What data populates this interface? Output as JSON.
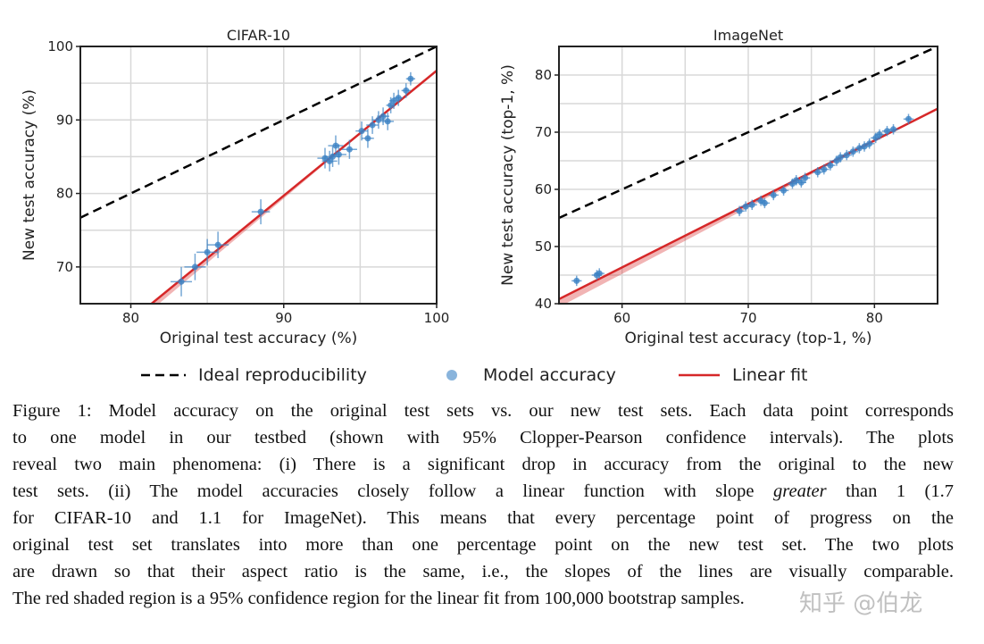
{
  "chart_data": [
    {
      "type": "scatter",
      "title": "CIFAR-10",
      "xlabel": "Original test accuracy (%)",
      "ylabel": "New test accuracy (%)",
      "xlim": [
        76.7,
        100
      ],
      "ylim": [
        65,
        100
      ],
      "xticks": [
        80,
        90,
        100
      ],
      "yticks": [
        70,
        80,
        90,
        100
      ],
      "grid": true,
      "ideal_line": {
        "slope": 1,
        "intercept": 0
      },
      "linear_fit": {
        "slope": 1.7,
        "intercept": -73.3
      },
      "points": [
        {
          "x": 83.3,
          "y": 68.0,
          "xerr": 0.7,
          "yerr": 2.0
        },
        {
          "x": 84.2,
          "y": 70.0,
          "xerr": 0.7,
          "yerr": 1.8
        },
        {
          "x": 85.0,
          "y": 72.0,
          "xerr": 0.7,
          "yerr": 1.8
        },
        {
          "x": 85.7,
          "y": 73.0,
          "xerr": 0.7,
          "yerr": 1.8
        },
        {
          "x": 88.5,
          "y": 77.5,
          "xerr": 0.6,
          "yerr": 1.7
        },
        {
          "x": 92.7,
          "y": 84.8,
          "xerr": 0.5,
          "yerr": 1.4
        },
        {
          "x": 93.0,
          "y": 84.4,
          "xerr": 0.5,
          "yerr": 1.4
        },
        {
          "x": 93.2,
          "y": 85.0,
          "xerr": 0.5,
          "yerr": 1.4
        },
        {
          "x": 93.4,
          "y": 86.5,
          "xerr": 0.5,
          "yerr": 1.4
        },
        {
          "x": 93.6,
          "y": 85.3,
          "xerr": 0.5,
          "yerr": 1.4
        },
        {
          "x": 94.3,
          "y": 86.0,
          "xerr": 0.5,
          "yerr": 1.3
        },
        {
          "x": 95.1,
          "y": 88.5,
          "xerr": 0.4,
          "yerr": 1.3
        },
        {
          "x": 95.5,
          "y": 87.5,
          "xerr": 0.4,
          "yerr": 1.3
        },
        {
          "x": 95.8,
          "y": 89.3,
          "xerr": 0.4,
          "yerr": 1.2
        },
        {
          "x": 96.2,
          "y": 90.0,
          "xerr": 0.4,
          "yerr": 1.2
        },
        {
          "x": 96.5,
          "y": 90.5,
          "xerr": 0.4,
          "yerr": 1.2
        },
        {
          "x": 96.8,
          "y": 89.8,
          "xerr": 0.4,
          "yerr": 1.2
        },
        {
          "x": 97.0,
          "y": 92.0,
          "xerr": 0.3,
          "yerr": 1.1
        },
        {
          "x": 97.2,
          "y": 92.6,
          "xerr": 0.3,
          "yerr": 1.1
        },
        {
          "x": 97.5,
          "y": 93.0,
          "xerr": 0.3,
          "yerr": 1.1
        },
        {
          "x": 98.0,
          "y": 94.0,
          "xerr": 0.3,
          "yerr": 1.0
        },
        {
          "x": 98.3,
          "y": 95.6,
          "xerr": 0.3,
          "yerr": 0.9
        }
      ]
    },
    {
      "type": "scatter",
      "title": "ImageNet",
      "xlabel": "Original test accuracy (top-1, %)",
      "ylabel": "New test accuracy (top-1, %)",
      "xlim": [
        55,
        85
      ],
      "ylim": [
        40,
        85
      ],
      "xticks": [
        60,
        70,
        80
      ],
      "yticks": [
        40,
        50,
        60,
        70,
        80
      ],
      "grid": true,
      "ideal_line": {
        "slope": 1,
        "intercept": 0
      },
      "linear_fit": {
        "slope": 1.11,
        "intercept": -20.25
      },
      "points": [
        {
          "x": 56.4,
          "y": 44.0,
          "xerr": 0.4,
          "yerr": 0.9
        },
        {
          "x": 58.0,
          "y": 45.0,
          "xerr": 0.4,
          "yerr": 0.9
        },
        {
          "x": 58.2,
          "y": 45.3,
          "xerr": 0.4,
          "yerr": 0.9
        },
        {
          "x": 69.3,
          "y": 56.2,
          "xerr": 0.4,
          "yerr": 0.9
        },
        {
          "x": 69.8,
          "y": 57.0,
          "xerr": 0.4,
          "yerr": 0.9
        },
        {
          "x": 70.3,
          "y": 57.3,
          "xerr": 0.4,
          "yerr": 0.9
        },
        {
          "x": 71.0,
          "y": 58.0,
          "xerr": 0.4,
          "yerr": 0.9
        },
        {
          "x": 71.3,
          "y": 57.6,
          "xerr": 0.4,
          "yerr": 0.9
        },
        {
          "x": 72.0,
          "y": 59.0,
          "xerr": 0.4,
          "yerr": 0.9
        },
        {
          "x": 72.8,
          "y": 59.8,
          "xerr": 0.4,
          "yerr": 0.9
        },
        {
          "x": 73.5,
          "y": 61.0,
          "xerr": 0.4,
          "yerr": 0.9
        },
        {
          "x": 73.8,
          "y": 61.6,
          "xerr": 0.4,
          "yerr": 0.9
        },
        {
          "x": 74.2,
          "y": 61.2,
          "xerr": 0.4,
          "yerr": 0.9
        },
        {
          "x": 74.5,
          "y": 62.0,
          "xerr": 0.4,
          "yerr": 0.9
        },
        {
          "x": 75.5,
          "y": 63.0,
          "xerr": 0.4,
          "yerr": 0.9
        },
        {
          "x": 76.0,
          "y": 63.5,
          "xerr": 0.4,
          "yerr": 0.9
        },
        {
          "x": 76.5,
          "y": 64.2,
          "xerr": 0.4,
          "yerr": 0.9
        },
        {
          "x": 77.0,
          "y": 65.0,
          "xerr": 0.4,
          "yerr": 0.9
        },
        {
          "x": 77.3,
          "y": 65.6,
          "xerr": 0.4,
          "yerr": 0.9
        },
        {
          "x": 77.8,
          "y": 66.0,
          "xerr": 0.4,
          "yerr": 0.9
        },
        {
          "x": 78.3,
          "y": 66.6,
          "xerr": 0.4,
          "yerr": 0.9
        },
        {
          "x": 78.8,
          "y": 67.2,
          "xerr": 0.4,
          "yerr": 0.9
        },
        {
          "x": 79.2,
          "y": 67.5,
          "xerr": 0.4,
          "yerr": 0.9
        },
        {
          "x": 79.6,
          "y": 68.0,
          "xerr": 0.4,
          "yerr": 0.9
        },
        {
          "x": 80.1,
          "y": 69.0,
          "xerr": 0.4,
          "yerr": 0.9
        },
        {
          "x": 80.4,
          "y": 69.6,
          "xerr": 0.4,
          "yerr": 0.9
        },
        {
          "x": 81.0,
          "y": 70.2,
          "xerr": 0.4,
          "yerr": 0.9
        },
        {
          "x": 81.5,
          "y": 70.5,
          "xerr": 0.4,
          "yerr": 0.9
        },
        {
          "x": 82.7,
          "y": 72.3,
          "xerr": 0.4,
          "yerr": 0.9
        }
      ]
    }
  ],
  "colors": {
    "points": "#3b82c4",
    "fit": "#d62728",
    "ideal": "#000000",
    "grid": "#d8d8d8"
  },
  "legend": {
    "ideal": "Ideal reproducibility",
    "model": "Model accuracy",
    "fit": "Linear fit"
  },
  "caption": {
    "lines": [
      "Figure 1: Model accuracy on the original test sets vs. our new test sets. Each data point corresponds",
      "to one model in our testbed (shown with 95% Clopper-Pearson confidence intervals). The plots",
      "reveal two main phenomena: (i) There is a significant drop in accuracy from the original to the new"
    ],
    "line4_pre": "test sets. (ii) The model accuracies closely follow a linear function with slope ",
    "line4_em": "greater",
    "line4_post": " than 1 (1.7",
    "lines_rest": [
      "for CIFAR-10 and 1.1 for ImageNet). This means that every percentage point of progress on the",
      "original test set translates into more than one percentage point on the new test set. The two plots",
      "are drawn so that their aspect ratio is the same, i.e., the slopes of the lines are visually comparable.",
      "The red shaded region is a 95% confidence region for the linear fit from 100,000 bootstrap samples."
    ]
  },
  "watermark": "知乎 @伯龙"
}
